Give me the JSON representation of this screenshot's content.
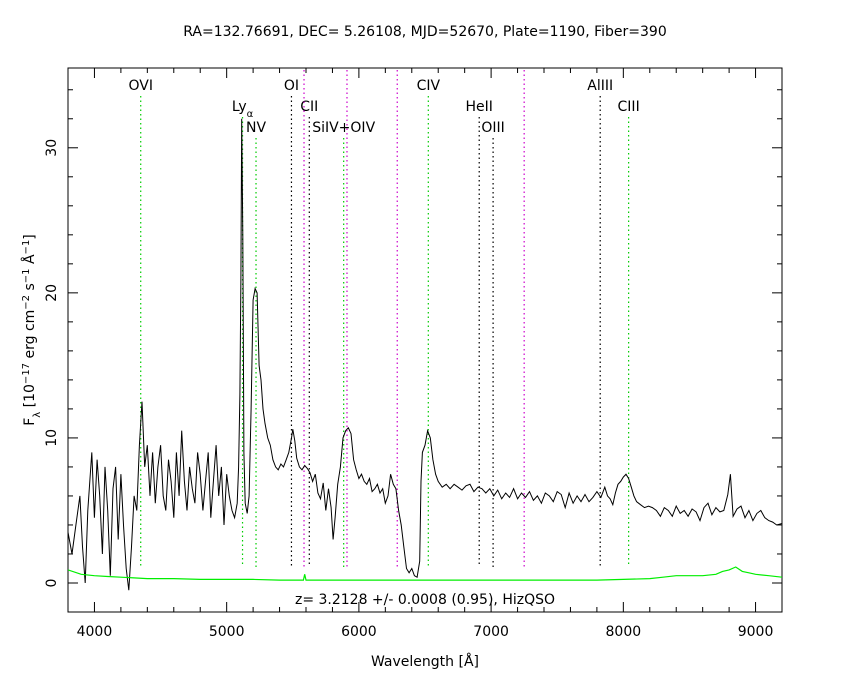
{
  "chart_data": {
    "type": "line",
    "title": "RA=132.76691, DEC= 5.26108, MJD=52670, Plate=1190, Fiber=390",
    "xlabel": "Wavelength [Å]",
    "ylabel": "F_λ [10^-17 erg cm^-2 s^-1 Å^-1]",
    "xlim": [
      3800,
      9200
    ],
    "ylim": [
      -2,
      35.5
    ],
    "x_ticks": [
      4000,
      5000,
      6000,
      7000,
      8000,
      9000
    ],
    "y_ticks": [
      0,
      10,
      20,
      30
    ],
    "annotation": "z= 3.2128 +/- 0.0008 (0.95), HizQSO",
    "grid": false,
    "series": [
      {
        "color": "#000000",
        "points": [
          [
            3800,
            3.5
          ],
          [
            3830,
            2.0
          ],
          [
            3860,
            4.0
          ],
          [
            3890,
            6.0
          ],
          [
            3910,
            2.5
          ],
          [
            3930,
            0
          ],
          [
            3950,
            5.0
          ],
          [
            3980,
            9.0
          ],
          [
            4000,
            4.5
          ],
          [
            4020,
            8.5
          ],
          [
            4040,
            6.0
          ],
          [
            4060,
            2.0
          ],
          [
            4080,
            8.0
          ],
          [
            4100,
            5.0
          ],
          [
            4120,
            0.5
          ],
          [
            4140,
            6.5
          ],
          [
            4160,
            8.0
          ],
          [
            4180,
            3.0
          ],
          [
            4200,
            7.5
          ],
          [
            4220,
            4.0
          ],
          [
            4240,
            1.0
          ],
          [
            4260,
            -0.5
          ],
          [
            4280,
            2.5
          ],
          [
            4300,
            6.0
          ],
          [
            4320,
            5.0
          ],
          [
            4340,
            9.5
          ],
          [
            4360,
            12.5
          ],
          [
            4380,
            8.0
          ],
          [
            4400,
            9.5
          ],
          [
            4420,
            6.0
          ],
          [
            4440,
            9.0
          ],
          [
            4460,
            5.5
          ],
          [
            4480,
            8.0
          ],
          [
            4500,
            9.5
          ],
          [
            4520,
            6.0
          ],
          [
            4540,
            5.0
          ],
          [
            4560,
            8.5
          ],
          [
            4580,
            7.0
          ],
          [
            4600,
            4.5
          ],
          [
            4620,
            9.0
          ],
          [
            4640,
            6.0
          ],
          [
            4660,
            10.5
          ],
          [
            4680,
            7.0
          ],
          [
            4700,
            5.0
          ],
          [
            4720,
            8.0
          ],
          [
            4740,
            6.5
          ],
          [
            4760,
            5.5
          ],
          [
            4780,
            9.0
          ],
          [
            4800,
            7.5
          ],
          [
            4820,
            5.0
          ],
          [
            4840,
            7.0
          ],
          [
            4860,
            9.0
          ],
          [
            4880,
            4.5
          ],
          [
            4900,
            7.0
          ],
          [
            4920,
            9.5
          ],
          [
            4940,
            6.0
          ],
          [
            4960,
            8.0
          ],
          [
            4980,
            4.0
          ],
          [
            5000,
            7.5
          ],
          [
            5020,
            6.0
          ],
          [
            5040,
            5.0
          ],
          [
            5060,
            4.5
          ],
          [
            5080,
            5.5
          ],
          [
            5090,
            8.0
          ],
          [
            5100,
            13.0
          ],
          [
            5108,
            21.0
          ],
          [
            5114,
            32.0
          ],
          [
            5122,
            24.0
          ],
          [
            5130,
            9.0
          ],
          [
            5140,
            5.5
          ],
          [
            5155,
            4.8
          ],
          [
            5170,
            6.0
          ],
          [
            5185,
            12.0
          ],
          [
            5200,
            19.5
          ],
          [
            5215,
            20.3
          ],
          [
            5230,
            20.0
          ],
          [
            5245,
            15.0
          ],
          [
            5260,
            14.0
          ],
          [
            5275,
            12.0
          ],
          [
            5290,
            11.0
          ],
          [
            5310,
            10.0
          ],
          [
            5330,
            9.5
          ],
          [
            5350,
            8.5
          ],
          [
            5370,
            8.0
          ],
          [
            5390,
            7.8
          ],
          [
            5410,
            8.2
          ],
          [
            5430,
            8.0
          ],
          [
            5450,
            8.5
          ],
          [
            5470,
            9.0
          ],
          [
            5490,
            10.0
          ],
          [
            5500,
            10.6
          ],
          [
            5515,
            9.8
          ],
          [
            5530,
            8.6
          ],
          [
            5550,
            8.0
          ],
          [
            5570,
            7.8
          ],
          [
            5590,
            8.1
          ],
          [
            5610,
            7.9
          ],
          [
            5630,
            7.6
          ],
          [
            5650,
            7.0
          ],
          [
            5670,
            7.5
          ],
          [
            5690,
            6.2
          ],
          [
            5710,
            5.8
          ],
          [
            5730,
            6.9
          ],
          [
            5750,
            5.0
          ],
          [
            5770,
            6.5
          ],
          [
            5790,
            5.2
          ],
          [
            5805,
            3.0
          ],
          [
            5820,
            4.5
          ],
          [
            5840,
            6.8
          ],
          [
            5860,
            8.0
          ],
          [
            5880,
            10.0
          ],
          [
            5900,
            10.5
          ],
          [
            5920,
            10.7
          ],
          [
            5940,
            10.3
          ],
          [
            5960,
            8.5
          ],
          [
            5980,
            7.8
          ],
          [
            6000,
            7.2
          ],
          [
            6020,
            7.5
          ],
          [
            6040,
            7.0
          ],
          [
            6060,
            6.8
          ],
          [
            6080,
            7.2
          ],
          [
            6100,
            6.3
          ],
          [
            6120,
            6.5
          ],
          [
            6140,
            6.8
          ],
          [
            6160,
            6.2
          ],
          [
            6180,
            6.5
          ],
          [
            6200,
            5.5
          ],
          [
            6220,
            6.0
          ],
          [
            6240,
            7.5
          ],
          [
            6260,
            6.8
          ],
          [
            6280,
            6.5
          ],
          [
            6300,
            5.0
          ],
          [
            6320,
            4.0
          ],
          [
            6340,
            2.5
          ],
          [
            6360,
            1.0
          ],
          [
            6380,
            0.7
          ],
          [
            6400,
            1.0
          ],
          [
            6420,
            0.5
          ],
          [
            6440,
            0.4
          ],
          [
            6460,
            1.5
          ],
          [
            6470,
            7.0
          ],
          [
            6480,
            9.0
          ],
          [
            6500,
            9.5
          ],
          [
            6520,
            10.5
          ],
          [
            6540,
            10.0
          ],
          [
            6560,
            8.5
          ],
          [
            6580,
            7.5
          ],
          [
            6600,
            7.0
          ],
          [
            6630,
            6.6
          ],
          [
            6660,
            6.8
          ],
          [
            6690,
            6.5
          ],
          [
            6720,
            6.8
          ],
          [
            6750,
            6.6
          ],
          [
            6780,
            6.4
          ],
          [
            6810,
            6.7
          ],
          [
            6840,
            6.8
          ],
          [
            6870,
            6.3
          ],
          [
            6900,
            6.6
          ],
          [
            6930,
            6.5
          ],
          [
            6960,
            6.2
          ],
          [
            6990,
            6.5
          ],
          [
            7020,
            6.0
          ],
          [
            7050,
            6.4
          ],
          [
            7080,
            5.8
          ],
          [
            7110,
            6.2
          ],
          [
            7140,
            5.9
          ],
          [
            7170,
            6.5
          ],
          [
            7200,
            5.8
          ],
          [
            7230,
            6.2
          ],
          [
            7260,
            5.9
          ],
          [
            7290,
            6.3
          ],
          [
            7320,
            5.7
          ],
          [
            7350,
            6.0
          ],
          [
            7380,
            5.5
          ],
          [
            7410,
            6.2
          ],
          [
            7440,
            6.0
          ],
          [
            7470,
            5.6
          ],
          [
            7500,
            6.3
          ],
          [
            7530,
            6.1
          ],
          [
            7560,
            5.2
          ],
          [
            7590,
            6.2
          ],
          [
            7620,
            5.5
          ],
          [
            7650,
            6.0
          ],
          [
            7680,
            5.6
          ],
          [
            7710,
            6.1
          ],
          [
            7740,
            5.6
          ],
          [
            7770,
            5.9
          ],
          [
            7800,
            6.3
          ],
          [
            7830,
            5.9
          ],
          [
            7860,
            6.6
          ],
          [
            7880,
            6.0
          ],
          [
            7900,
            5.8
          ],
          [
            7920,
            5.4
          ],
          [
            7940,
            6.2
          ],
          [
            7960,
            6.8
          ],
          [
            7980,
            7.0
          ],
          [
            8000,
            7.3
          ],
          [
            8020,
            7.5
          ],
          [
            8040,
            7.2
          ],
          [
            8060,
            6.6
          ],
          [
            8080,
            6.0
          ],
          [
            8100,
            5.6
          ],
          [
            8130,
            5.4
          ],
          [
            8160,
            5.2
          ],
          [
            8190,
            5.3
          ],
          [
            8220,
            5.2
          ],
          [
            8250,
            5.0
          ],
          [
            8280,
            4.6
          ],
          [
            8310,
            5.2
          ],
          [
            8340,
            5.0
          ],
          [
            8370,
            4.6
          ],
          [
            8400,
            5.3
          ],
          [
            8430,
            4.8
          ],
          [
            8460,
            5.0
          ],
          [
            8490,
            4.6
          ],
          [
            8520,
            5.1
          ],
          [
            8550,
            4.9
          ],
          [
            8580,
            4.3
          ],
          [
            8610,
            5.2
          ],
          [
            8640,
            5.5
          ],
          [
            8670,
            4.7
          ],
          [
            8700,
            5.2
          ],
          [
            8730,
            4.9
          ],
          [
            8760,
            5.0
          ],
          [
            8790,
            6.1
          ],
          [
            8810,
            7.5
          ],
          [
            8830,
            4.6
          ],
          [
            8860,
            5.1
          ],
          [
            8890,
            5.3
          ],
          [
            8920,
            4.5
          ],
          [
            8950,
            5.0
          ],
          [
            8980,
            4.3
          ],
          [
            9010,
            4.8
          ],
          [
            9040,
            5.0
          ],
          [
            9070,
            4.5
          ],
          [
            9100,
            4.3
          ],
          [
            9130,
            4.2
          ],
          [
            9160,
            4.0
          ],
          [
            9200,
            4.1
          ]
        ]
      },
      {
        "color": "#00ee00",
        "points": [
          [
            3800,
            0.9
          ],
          [
            3900,
            0.6
          ],
          [
            4000,
            0.5
          ],
          [
            4100,
            0.45
          ],
          [
            4200,
            0.4
          ],
          [
            4300,
            0.35
          ],
          [
            4400,
            0.3
          ],
          [
            4500,
            0.3
          ],
          [
            4600,
            0.3
          ],
          [
            4800,
            0.25
          ],
          [
            5000,
            0.25
          ],
          [
            5200,
            0.25
          ],
          [
            5400,
            0.2
          ],
          [
            5580,
            0.2
          ],
          [
            5590,
            0.6
          ],
          [
            5600,
            0.2
          ],
          [
            5800,
            0.2
          ],
          [
            6000,
            0.2
          ],
          [
            6200,
            0.2
          ],
          [
            6400,
            0.2
          ],
          [
            6600,
            0.2
          ],
          [
            6800,
            0.2
          ],
          [
            7000,
            0.2
          ],
          [
            7200,
            0.2
          ],
          [
            7400,
            0.2
          ],
          [
            7600,
            0.2
          ],
          [
            7800,
            0.2
          ],
          [
            8000,
            0.25
          ],
          [
            8200,
            0.3
          ],
          [
            8300,
            0.4
          ],
          [
            8400,
            0.5
          ],
          [
            8500,
            0.5
          ],
          [
            8600,
            0.5
          ],
          [
            8700,
            0.6
          ],
          [
            8750,
            0.8
          ],
          [
            8800,
            0.9
          ],
          [
            8850,
            1.1
          ],
          [
            8900,
            0.8
          ],
          [
            8950,
            0.7
          ],
          [
            9000,
            0.6
          ],
          [
            9100,
            0.5
          ],
          [
            9200,
            0.4
          ]
        ]
      }
    ],
    "lines": [
      {
        "name": "OVI",
        "wavelength": 4350,
        "color": "#00cc00",
        "label_row": 1
      },
      {
        "name": "Ly",
        "subscript": "α",
        "wavelength": 5120,
        "color": "#00cc00",
        "label_row": 2
      },
      {
        "name": "NV",
        "wavelength": 5222,
        "color": "#00cc00",
        "label_row": 3
      },
      {
        "name": "OI",
        "wavelength": 5490,
        "color": "#000000",
        "label_row": 1
      },
      {
        "name": "CII",
        "wavelength": 5625,
        "color": "#000000",
        "label_row": 2
      },
      {
        "name": "",
        "wavelength": 5585,
        "color": "#cc00cc",
        "label_row": 0
      },
      {
        "name": "SiIV+OIV",
        "wavelength": 5885,
        "color": "#00cc00",
        "label_row": 3
      },
      {
        "name": "",
        "wavelength": 5910,
        "color": "#cc00cc",
        "label_row": 0
      },
      {
        "name": "",
        "wavelength": 6290,
        "color": "#cc00cc",
        "label_row": 0
      },
      {
        "name": "CIV",
        "wavelength": 6525,
        "color": "#00cc00",
        "label_row": 1
      },
      {
        "name": "HeII",
        "wavelength": 6910,
        "color": "#000000",
        "label_row": 2
      },
      {
        "name": "OIII",
        "wavelength": 7015,
        "color": "#000000",
        "label_row": 3
      },
      {
        "name": "",
        "wavelength": 7250,
        "color": "#cc00cc",
        "label_row": 0
      },
      {
        "name": "AlIII",
        "wavelength": 7825,
        "color": "#000000",
        "label_row": 1
      },
      {
        "name": "CIII",
        "wavelength": 8040,
        "color": "#00cc00",
        "label_row": 2
      }
    ]
  }
}
